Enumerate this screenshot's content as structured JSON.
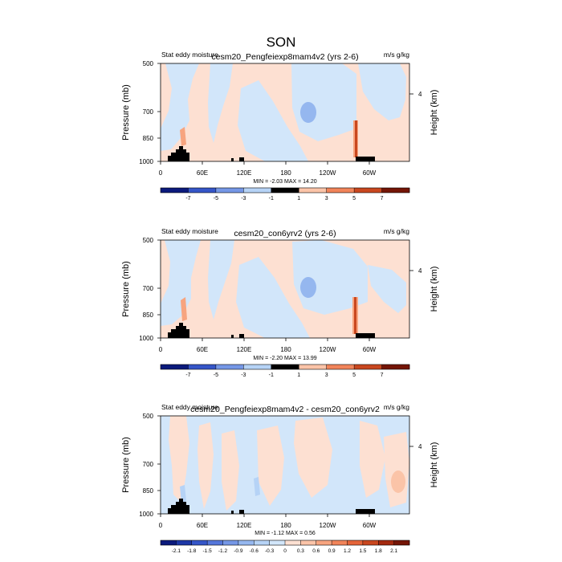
{
  "figure": {
    "title": "SON"
  },
  "colors": {
    "pos": [
      "#fde0d2",
      "#fbc4a8",
      "#f7a47f",
      "#f1845a",
      "#e46439",
      "#c9471f",
      "#a3290f",
      "#741506"
    ],
    "neg": [
      "#d2e6fa",
      "#b6d3f6",
      "#95b7ef",
      "#7597e6",
      "#5576da",
      "#3556c8",
      "#1d37a6",
      "#0b1a7c"
    ],
    "terrain": "#000000"
  },
  "chart_data": [
    {
      "type": "heatmap",
      "title": "cesm20_Pengfeiexp8mam4v2 (yrs 2-6)",
      "left_label": "Stat eddy moisture",
      "right_label": "m/s g/kg",
      "ylabel": "Pressure (mb)",
      "ylabel_right": "Height (km)",
      "x_ticks": [
        "0",
        "60E",
        "120E",
        "180",
        "120W",
        "60W"
      ],
      "y_ticks": [
        "500",
        "700",
        "850",
        "1000"
      ],
      "y_ticks_right": [
        "4"
      ],
      "stats": "MIN =  -2.03  MAX =  14.20",
      "colorbar_levels": [
        "-7",
        "-5",
        "-3",
        "-1",
        "1",
        "3",
        "5",
        "7"
      ]
    },
    {
      "type": "heatmap",
      "title": "cesm20_con6yrv2 (yrs 2-6)",
      "left_label": "Stat eddy moisture",
      "right_label": "m/s g/kg",
      "ylabel": "Pressure (mb)",
      "ylabel_right": "Height (km)",
      "x_ticks": [
        "0",
        "60E",
        "120E",
        "180",
        "120W",
        "60W"
      ],
      "y_ticks": [
        "500",
        "700",
        "850",
        "1000"
      ],
      "y_ticks_right": [
        "4"
      ],
      "stats": "MIN =  -2.20  MAX =  13.99",
      "colorbar_levels": [
        "-7",
        "-5",
        "-3",
        "-1",
        "1",
        "3",
        "5",
        "7"
      ]
    },
    {
      "type": "heatmap",
      "title": "cesm20_Pengfeiexp8mam4v2 - cesm20_con6yrv2",
      "left_label": "Stat eddy moisture",
      "right_label": "m/s g/kg",
      "ylabel": "Pressure (mb)",
      "ylabel_right": "Height (km)",
      "x_ticks": [
        "0",
        "60E",
        "120E",
        "180",
        "120W",
        "60W"
      ],
      "y_ticks": [
        "500",
        "700",
        "850",
        "1000"
      ],
      "y_ticks_right": [
        "4"
      ],
      "stats": "MIN =  -1.12  MAX =  0.56",
      "colorbar_levels": [
        "-2.1",
        "-1.8",
        "-1.5",
        "-1.2",
        "-0.9",
        "-0.6",
        "-0.3",
        "0",
        "0.3",
        "0.6",
        "0.9",
        "1.2",
        "1.5",
        "1.8",
        "2.1"
      ]
    }
  ]
}
